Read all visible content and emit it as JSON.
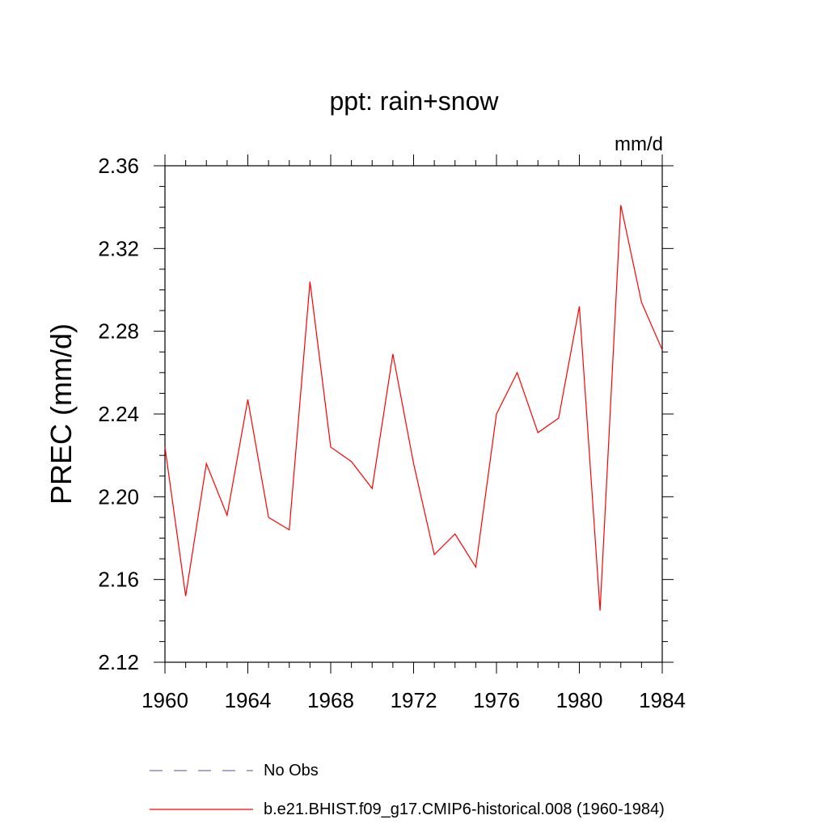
{
  "chart_data": {
    "type": "line",
    "title": "ppt: rain+snow",
    "units_label": "mm/d",
    "ylabel": "PREC  (mm/d)",
    "xlabel": "",
    "xlim": [
      1960,
      1984
    ],
    "ylim": [
      2.12,
      2.36
    ],
    "x_ticks": [
      "1960",
      "1964",
      "1968",
      "1972",
      "1976",
      "1980",
      "1984"
    ],
    "y_ticks": [
      "2.12",
      "2.16",
      "2.20",
      "2.24",
      "2.28",
      "2.32",
      "2.36"
    ],
    "grid": false,
    "legend_placement": "bottom",
    "series": [
      {
        "name": "No Obs",
        "color": "#7b6fb3",
        "dash": "dashed",
        "x": [],
        "values": []
      },
      {
        "name": "b.e21.BHIST.f09_g17.CMIP6-historical.008 (1960-1984)",
        "color": "#ff0000",
        "dash": "solid",
        "x": [
          1960,
          1961,
          1962,
          1963,
          1964,
          1965,
          1966,
          1967,
          1968,
          1969,
          1970,
          1971,
          1972,
          1973,
          1974,
          1975,
          1976,
          1977,
          1978,
          1979,
          1980,
          1981,
          1982,
          1983,
          1984
        ],
        "values": [
          2.224,
          2.152,
          2.216,
          2.191,
          2.247,
          2.19,
          2.184,
          2.304,
          2.224,
          2.217,
          2.204,
          2.269,
          2.216,
          2.172,
          2.182,
          2.166,
          2.24,
          2.26,
          2.231,
          2.238,
          2.292,
          2.145,
          2.341,
          2.294,
          2.271
        ]
      }
    ]
  }
}
